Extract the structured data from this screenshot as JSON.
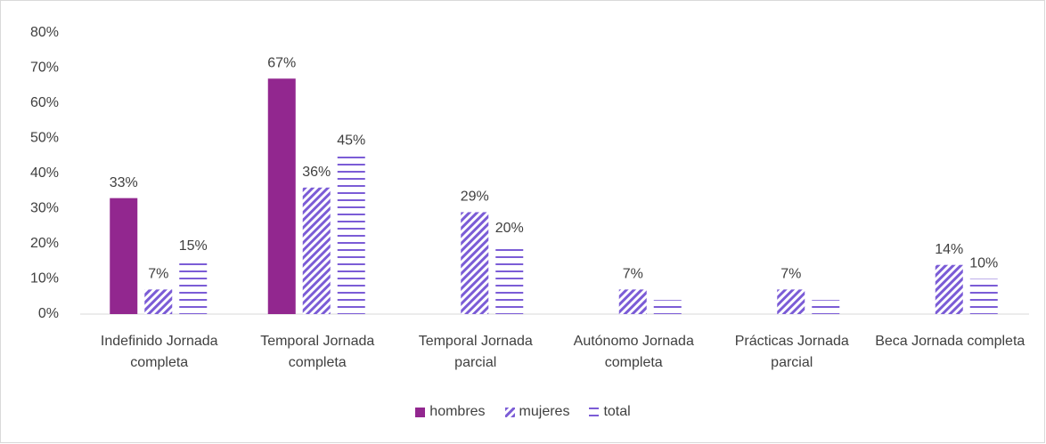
{
  "chart_data": {
    "type": "bar",
    "categories": [
      "Indefinido Jornada completa",
      "Temporal Jornada completa",
      "Temporal Jornada parcial",
      "Autónomo Jornada completa",
      "Prácticas Jornada parcial",
      "Beca Jornada completa"
    ],
    "series": [
      {
        "name": "hombres",
        "color": "#92278f",
        "pattern": "solid",
        "values": [
          33,
          67,
          null,
          null,
          null,
          null
        ],
        "value_labels": [
          "33%",
          "67%",
          null,
          null,
          null,
          null
        ]
      },
      {
        "name": "mujeres",
        "color": "#7b5cd6",
        "pattern": "diagonal",
        "values": [
          7,
          36,
          29,
          7,
          7,
          14
        ],
        "value_labels": [
          "7%",
          "36%",
          "29%",
          "7%",
          "7%",
          "14%"
        ]
      },
      {
        "name": "total",
        "color": "#7b5cd6",
        "pattern": "horizontal",
        "values": [
          15,
          45,
          20,
          4,
          4,
          10
        ],
        "value_labels": [
          "15%",
          "45%",
          "20%",
          null,
          null,
          "10%"
        ]
      }
    ],
    "ylim": [
      0,
      80
    ],
    "yticks": [
      {
        "value": 0,
        "label": "0%"
      },
      {
        "value": 10,
        "label": "10%"
      },
      {
        "value": 20,
        "label": "20%"
      },
      {
        "value": 30,
        "label": "30%"
      },
      {
        "value": 40,
        "label": "40%"
      },
      {
        "value": 50,
        "label": "50%"
      },
      {
        "value": 60,
        "label": "60%"
      },
      {
        "value": 70,
        "label": "70%"
      },
      {
        "value": 80,
        "label": "80%"
      }
    ],
    "grid": false,
    "legend": "bottom"
  }
}
